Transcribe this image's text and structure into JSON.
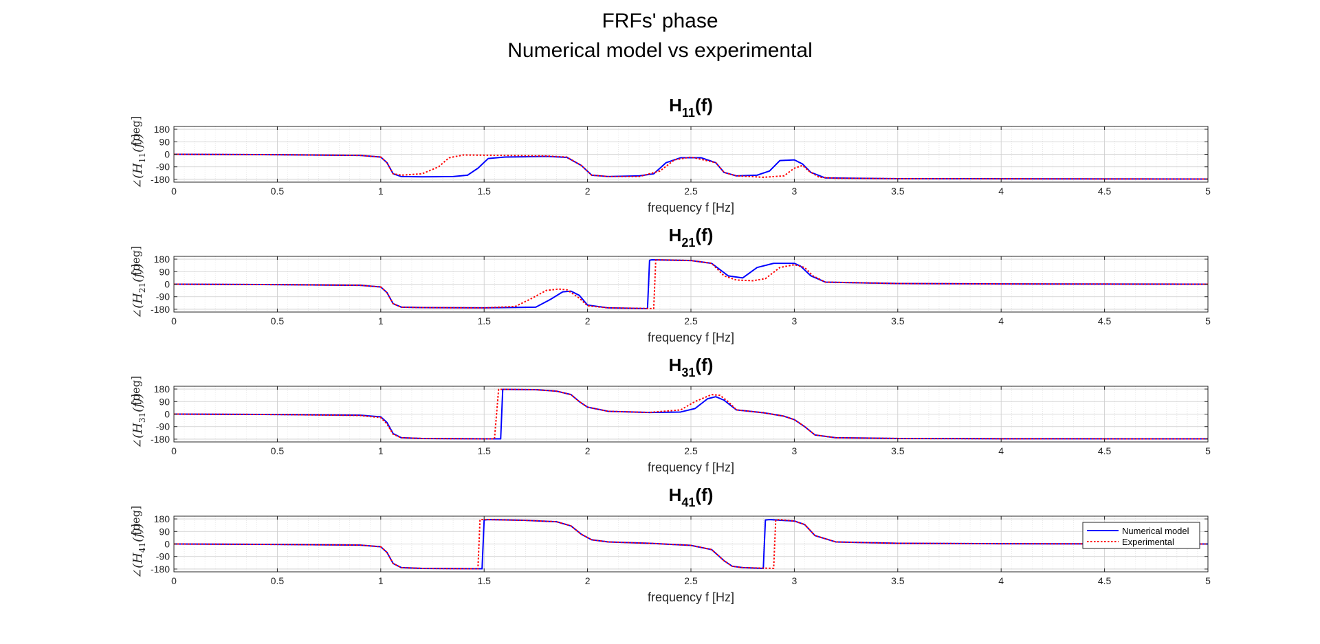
{
  "figure": {
    "title_line1": "FRFs' phase",
    "title_line2": "Numerical model vs experimental"
  },
  "legend": {
    "entries": [
      "Numerical model",
      "Experimental"
    ],
    "placement": "right, inside bottom subplot"
  },
  "colors": {
    "numerical": "#0000FF",
    "experimental": "#FF0000"
  },
  "chart_data": [
    {
      "type": "line",
      "title": "H11(f)",
      "title_main": "H",
      "title_sub": "11",
      "title_tail": "(f)",
      "ylabel_pre": "∠(H",
      "ylabel_sub": "11",
      "ylabel_post": "(f))",
      "ylabel_unit": "[deg]",
      "xlabel": "frequency f [Hz]",
      "xlim": [
        0,
        5
      ],
      "ylim": [
        -200,
        200
      ],
      "xticks": [
        0,
        0.5,
        1,
        1.5,
        2,
        2.5,
        3,
        3.5,
        4,
        4.5,
        5
      ],
      "xtick_labels": [
        "0",
        "0.5",
        "1",
        "1.5",
        "2",
        "2.5",
        "3",
        "3.5",
        "4",
        "4.5",
        "5"
      ],
      "yticks": [
        180,
        90,
        0,
        -90,
        -180
      ],
      "ytick_labels": [
        "180",
        "90",
        "0",
        "-90",
        "-180"
      ],
      "grid": true,
      "series": [
        {
          "name": "Numerical model",
          "style": "solid",
          "x": [
            0,
            0.5,
            0.9,
            1.0,
            1.03,
            1.06,
            1.1,
            1.2,
            1.35,
            1.42,
            1.47,
            1.52,
            1.6,
            1.8,
            1.9,
            1.97,
            2.02,
            2.1,
            2.25,
            2.32,
            2.38,
            2.45,
            2.55,
            2.62,
            2.66,
            2.72,
            2.82,
            2.88,
            2.93,
            3.0,
            3.04,
            3.08,
            3.15,
            3.5,
            4.0,
            5.0
          ],
          "y": [
            0,
            -3,
            -8,
            -20,
            -60,
            -140,
            -160,
            -162,
            -160,
            -150,
            -100,
            -30,
            -20,
            -15,
            -22,
            -80,
            -150,
            -160,
            -155,
            -140,
            -60,
            -25,
            -25,
            -60,
            -130,
            -155,
            -150,
            -120,
            -45,
            -40,
            -70,
            -130,
            -170,
            -175,
            -176,
            -178
          ]
        },
        {
          "name": "Experimental",
          "style": "dotted",
          "x": [
            0,
            0.5,
            0.9,
            1.0,
            1.03,
            1.06,
            1.1,
            1.2,
            1.28,
            1.33,
            1.4,
            1.6,
            1.8,
            1.9,
            1.97,
            2.02,
            2.1,
            2.25,
            2.35,
            2.42,
            2.5,
            2.62,
            2.66,
            2.72,
            2.85,
            2.95,
            3.0,
            3.04,
            3.07,
            3.12,
            3.2,
            3.5,
            4.0,
            5.0
          ],
          "y": [
            0,
            -3,
            -8,
            -20,
            -60,
            -140,
            -150,
            -140,
            -90,
            -25,
            -5,
            -8,
            -12,
            -20,
            -80,
            -150,
            -160,
            -160,
            -120,
            -40,
            -20,
            -60,
            -130,
            -155,
            -165,
            -155,
            -100,
            -80,
            -120,
            -165,
            -172,
            -175,
            -176,
            -178
          ]
        }
      ]
    },
    {
      "type": "line",
      "title": "H21(f)",
      "title_main": "H",
      "title_sub": "21",
      "title_tail": "(f)",
      "ylabel_pre": "∠(H",
      "ylabel_sub": "21",
      "ylabel_post": "(f))",
      "ylabel_unit": "[deg]",
      "xlabel": "frequency f [Hz]",
      "xlim": [
        0,
        5
      ],
      "ylim": [
        -200,
        200
      ],
      "xticks": [
        0,
        0.5,
        1,
        1.5,
        2,
        2.5,
        3,
        3.5,
        4,
        4.5,
        5
      ],
      "xtick_labels": [
        "0",
        "0.5",
        "1",
        "1.5",
        "2",
        "2.5",
        "3",
        "3.5",
        "4",
        "4.5",
        "5"
      ],
      "yticks": [
        180,
        90,
        0,
        -90,
        -180
      ],
      "ytick_labels": [
        "180",
        "90",
        "0",
        "-90",
        "-180"
      ],
      "grid": true,
      "series": [
        {
          "name": "Numerical model",
          "style": "solid",
          "x": [
            0,
            0.5,
            0.9,
            1.0,
            1.03,
            1.06,
            1.1,
            1.2,
            1.5,
            1.75,
            1.82,
            1.88,
            1.92,
            1.96,
            2.0,
            2.1,
            2.29,
            2.3,
            2.31,
            2.5,
            2.6,
            2.68,
            2.75,
            2.82,
            2.9,
            3.0,
            3.03,
            3.08,
            3.15,
            3.5,
            4.0,
            5.0
          ],
          "y": [
            0,
            -3,
            -8,
            -20,
            -60,
            -140,
            -165,
            -168,
            -170,
            -165,
            -110,
            -55,
            -50,
            -80,
            -150,
            -170,
            -175,
            172,
            175,
            170,
            150,
            60,
            45,
            120,
            150,
            150,
            130,
            60,
            15,
            5,
            2,
            0
          ]
        },
        {
          "name": "Experimental",
          "style": "dotted",
          "x": [
            0,
            0.5,
            0.9,
            1.0,
            1.03,
            1.06,
            1.1,
            1.2,
            1.5,
            1.65,
            1.72,
            1.8,
            1.86,
            1.9,
            1.96,
            2.0,
            2.1,
            2.32,
            2.33,
            2.34,
            2.5,
            2.6,
            2.66,
            2.72,
            2.8,
            2.86,
            2.93,
            3.0,
            3.05,
            3.09,
            3.15,
            3.5,
            4.0,
            5.0
          ],
          "y": [
            0,
            -3,
            -8,
            -20,
            -60,
            -140,
            -165,
            -168,
            -170,
            -160,
            -110,
            -45,
            -35,
            -40,
            -100,
            -155,
            -170,
            -175,
            175,
            175,
            170,
            150,
            60,
            30,
            25,
            40,
            120,
            140,
            120,
            60,
            15,
            5,
            2,
            0
          ]
        }
      ]
    },
    {
      "type": "line",
      "title": "H31(f)",
      "title_main": "H",
      "title_sub": "31",
      "title_tail": "(f)",
      "ylabel_pre": "∠(H",
      "ylabel_sub": "31",
      "ylabel_post": "(f))",
      "ylabel_unit": "[deg]",
      "xlabel": "frequency f [Hz]",
      "xlim": [
        0,
        5
      ],
      "ylim": [
        -200,
        200
      ],
      "xticks": [
        0,
        0.5,
        1,
        1.5,
        2,
        2.5,
        3,
        3.5,
        4,
        4.5,
        5
      ],
      "xtick_labels": [
        "0",
        "0.5",
        "1",
        "1.5",
        "2",
        "2.5",
        "3",
        "3.5",
        "4",
        "4.5",
        "5"
      ],
      "yticks": [
        180,
        90,
        0,
        -90,
        -180
      ],
      "ytick_labels": [
        "180",
        "90",
        "0",
        "-90",
        "-180"
      ],
      "grid": true,
      "series": [
        {
          "name": "Numerical model",
          "style": "solid",
          "x": [
            0,
            0.5,
            0.9,
            1.0,
            1.03,
            1.06,
            1.1,
            1.2,
            1.5,
            1.58,
            1.59,
            1.6,
            1.75,
            1.85,
            1.92,
            1.96,
            2.0,
            2.1,
            2.3,
            2.45,
            2.52,
            2.58,
            2.62,
            2.66,
            2.72,
            2.85,
            2.95,
            3.0,
            3.05,
            3.1,
            3.2,
            3.5,
            4.0,
            5.0
          ],
          "y": [
            0,
            -3,
            -8,
            -20,
            -60,
            -140,
            -170,
            -175,
            -178,
            -178,
            178,
            178,
            175,
            165,
            140,
            90,
            50,
            20,
            12,
            15,
            40,
            110,
            125,
            100,
            30,
            10,
            -15,
            -40,
            -90,
            -150,
            -170,
            -175,
            -177,
            -178
          ]
        },
        {
          "name": "Experimental",
          "style": "dotted",
          "x": [
            0,
            0.5,
            0.9,
            1.0,
            1.03,
            1.06,
            1.1,
            1.2,
            1.5,
            1.55,
            1.57,
            1.6,
            1.75,
            1.85,
            1.92,
            1.96,
            2.0,
            2.1,
            2.3,
            2.45,
            2.52,
            2.6,
            2.64,
            2.68,
            2.72,
            2.85,
            2.95,
            3.0,
            3.05,
            3.1,
            3.2,
            3.5,
            4.0,
            5.0
          ],
          "y": [
            0,
            -3,
            -10,
            -25,
            -70,
            -145,
            -170,
            -175,
            -178,
            -178,
            178,
            178,
            175,
            165,
            140,
            90,
            50,
            20,
            12,
            30,
            90,
            140,
            135,
            90,
            30,
            10,
            -15,
            -40,
            -90,
            -150,
            -170,
            -175,
            -177,
            -178
          ]
        }
      ]
    },
    {
      "type": "line",
      "title": "H41(f)",
      "title_main": "H",
      "title_sub": "41",
      "title_tail": "(f)",
      "ylabel_pre": "∠(H",
      "ylabel_sub": "41",
      "ylabel_post": "(f))",
      "ylabel_unit": "[deg]",
      "xlabel": "frequency f [Hz]",
      "xlim": [
        0,
        5
      ],
      "ylim": [
        -200,
        200
      ],
      "xticks": [
        0,
        0.5,
        1,
        1.5,
        2,
        2.5,
        3,
        3.5,
        4,
        4.5,
        5
      ],
      "xtick_labels": [
        "0",
        "0.5",
        "1",
        "1.5",
        "2",
        "2.5",
        "3",
        "3.5",
        "4",
        "4.5",
        "5"
      ],
      "yticks": [
        180,
        90,
        0,
        -90,
        -180
      ],
      "ytick_labels": [
        "180",
        "90",
        "0",
        "-90",
        "-180"
      ],
      "grid": true,
      "series": [
        {
          "name": "Numerical model",
          "style": "solid",
          "x": [
            0,
            0.5,
            0.9,
            1.0,
            1.03,
            1.06,
            1.1,
            1.2,
            1.45,
            1.49,
            1.5,
            1.52,
            1.7,
            1.85,
            1.92,
            1.97,
            2.02,
            2.1,
            2.3,
            2.5,
            2.6,
            2.66,
            2.7,
            2.75,
            2.85,
            2.86,
            2.88,
            3.0,
            3.05,
            3.1,
            3.2,
            3.5,
            4.0,
            5.0
          ],
          "y": [
            0,
            -3,
            -8,
            -20,
            -60,
            -140,
            -170,
            -175,
            -178,
            -178,
            172,
            175,
            170,
            160,
            130,
            70,
            30,
            15,
            5,
            -10,
            -40,
            -120,
            -160,
            -170,
            -175,
            172,
            175,
            165,
            140,
            60,
            15,
            5,
            2,
            0
          ]
        },
        {
          "name": "Experimental",
          "style": "dotted",
          "x": [
            0,
            0.5,
            0.9,
            1.0,
            1.03,
            1.06,
            1.1,
            1.2,
            1.45,
            1.47,
            1.48,
            1.52,
            1.7,
            1.85,
            1.92,
            1.97,
            2.02,
            2.1,
            2.3,
            2.5,
            2.6,
            2.66,
            2.7,
            2.75,
            2.9,
            2.91,
            2.93,
            3.0,
            3.05,
            3.1,
            3.2,
            3.5,
            4.0,
            5.0
          ],
          "y": [
            0,
            -3,
            -8,
            -20,
            -60,
            -140,
            -170,
            -175,
            -178,
            -178,
            175,
            175,
            170,
            160,
            130,
            70,
            30,
            15,
            5,
            -10,
            -40,
            -120,
            -160,
            -170,
            -175,
            172,
            175,
            165,
            140,
            60,
            15,
            5,
            2,
            0
          ]
        }
      ]
    }
  ]
}
